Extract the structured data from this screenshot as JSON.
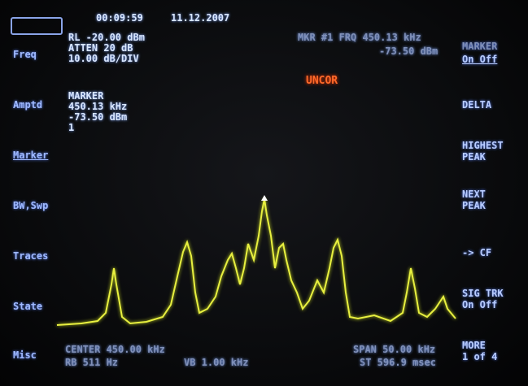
{
  "header": {
    "time": "00:09:59",
    "date": "11.12.2007",
    "ref_level": "RL -20.00 dBm",
    "atten": "ATTEN 20 dB",
    "scale": "10.00 dB/DIV",
    "marker_freq": "MKR #1 FRQ 450.13 kHz",
    "marker_ampl": "-73.50 dBm",
    "status": "UNCOR"
  },
  "left_menu": [
    "Freq",
    "Amptd",
    "Marker",
    "BW,Swp",
    "Traces",
    "State",
    "Misc"
  ],
  "marker_readout": {
    "title": "MARKER",
    "freq": "450.13 kHz",
    "ampl": "-73.50 dBm",
    "number": "1"
  },
  "softkeys": [
    {
      "label": "MARKER",
      "option": "On Off"
    },
    {
      "label": "DELTA"
    },
    {
      "label": "HIGHEST\nPEAK"
    },
    {
      "label": "NEXT\nPEAK"
    },
    {
      "label": "-> CF"
    },
    {
      "label": "SIG TRK",
      "option": "On Off"
    },
    {
      "label": "MORE",
      "option": "1 of 4"
    }
  ],
  "footer": {
    "center": "CENTER 450.00 kHz",
    "rbw": "RB 511 Hz",
    "vbw": "VB 1.00 kHz",
    "span": "SPAN 50.00 kHz",
    "sweep": "ST 596.9 msec"
  }
}
